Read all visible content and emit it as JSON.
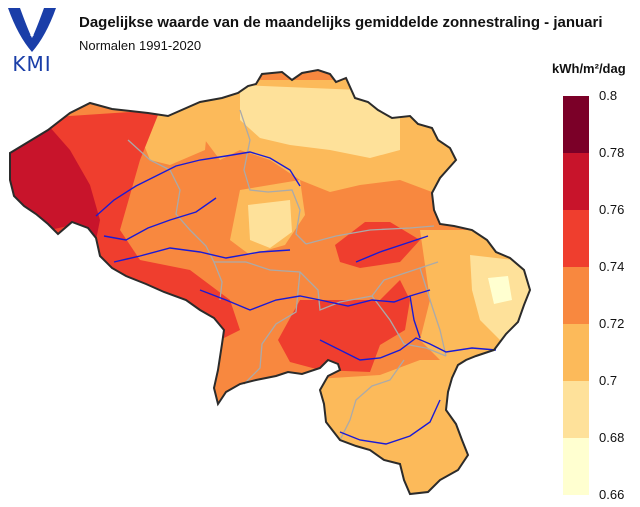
{
  "header": {
    "title": "Dagelijkse waarde van de maandelijks gemiddelde zonnestraling - januari",
    "subtitle": "Normalen 1991-2020",
    "logo_text": "KMI"
  },
  "legend": {
    "unit": "kWh/m²/dag",
    "bins": [
      {
        "from": 0.78,
        "to": 0.8,
        "color": "#7b0028"
      },
      {
        "from": 0.76,
        "to": 0.78,
        "color": "#c8142b"
      },
      {
        "from": 0.74,
        "to": 0.76,
        "color": "#ef3e2e"
      },
      {
        "from": 0.72,
        "to": 0.74,
        "color": "#f8883f"
      },
      {
        "from": 0.7,
        "to": 0.72,
        "color": "#fcba5a"
      },
      {
        "from": 0.68,
        "to": 0.7,
        "color": "#fee19a"
      },
      {
        "from": 0.66,
        "to": 0.68,
        "color": "#ffffd0"
      }
    ],
    "labels": [
      "0.8",
      "0.78",
      "0.76",
      "0.74",
      "0.72",
      "0.7",
      "0.68",
      "0.66"
    ]
  },
  "colors": {
    "border": "#2b2b2b",
    "province_lines": "#aaaaaa",
    "rivers": "#1a1ad6",
    "logo": "#1a3ea8"
  }
}
